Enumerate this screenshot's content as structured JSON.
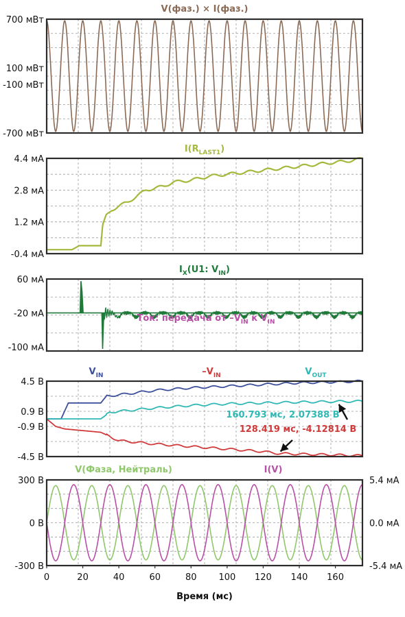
{
  "chart_data": [
    {
      "type": "line",
      "title": "V(фаз.) × I(фаз.)",
      "title_color": "#8a6a55",
      "series": [
        {
          "name": "V(фаз.) × I(фаз.)",
          "color": "#8a6a55",
          "amplitude": 680,
          "offset": 0,
          "frequency_hz": 100
        }
      ],
      "ylim": [
        -700,
        700
      ],
      "yticks": [
        700,
        100,
        -100,
        -700
      ],
      "ytick_labels": [
        "700 мВт",
        "100 мВт",
        "-100 мВт",
        "-700 мВт"
      ],
      "xlim": [
        0,
        175
      ]
    },
    {
      "type": "line",
      "title": "I(R",
      "title_sub": "LAST1",
      "title_end": ")",
      "title_color": "#a6b83c",
      "series": [
        {
          "name": "I(RLAST1)",
          "color": "#a6b83c",
          "x": [
            0,
            10,
            14,
            18,
            24,
            30,
            31,
            33,
            36,
            40,
            45,
            50,
            55,
            60,
            65,
            70,
            80,
            90,
            100,
            110,
            120,
            130,
            140,
            150,
            160,
            170,
            175
          ],
          "y": [
            -0.2,
            -0.2,
            -0.2,
            0.0,
            0.0,
            0.0,
            1.0,
            1.5,
            1.8,
            2.0,
            2.2,
            2.5,
            2.8,
            2.9,
            3.0,
            3.2,
            3.3,
            3.5,
            3.6,
            3.7,
            3.8,
            3.9,
            4.0,
            4.1,
            4.2,
            4.3,
            4.4
          ]
        }
      ],
      "ylim": [
        -0.4,
        4.4
      ],
      "yticks": [
        4.4,
        2.8,
        1.2,
        -0.4
      ],
      "ytick_labels": [
        "4.4 мА",
        "2.8 мА",
        "1.2 мА",
        "-0.4 мА"
      ],
      "xlim": [
        0,
        175
      ]
    },
    {
      "type": "line",
      "title": "I",
      "title_sub": "X",
      "title_mid": "(U1: V",
      "title_sub2": "IN",
      "title_end": ")",
      "title_color": "#1f7a3a",
      "series": [
        {
          "name": "IX(U1: VIN)",
          "color": "#1f7a3a"
        }
      ],
      "ylim": [
        -110,
        60
      ],
      "yticks": [
        60,
        -20,
        -100
      ],
      "ytick_labels": [
        "60 мА",
        "-20 мА",
        "-100 мА"
      ],
      "xlim": [
        0,
        175
      ],
      "annotation": {
        "pre": "Ток: передача от –V",
        "sub1": "IN",
        "mid": " к V",
        "sub2": "IN",
        "color": "#b84fa6"
      }
    },
    {
      "type": "line",
      "xlim": [
        0,
        175
      ],
      "ylim": [
        -4.5,
        4.5
      ],
      "yticks": [
        4.5,
        0.9,
        -0.9,
        -4.5
      ],
      "ytick_labels": [
        "4.5 В",
        "0.9 В",
        "-0.9 В",
        "-4.5 В"
      ],
      "series": [
        {
          "name": "V",
          "sub": "IN",
          "color": "#3b4f9a",
          "x": [
            0,
            8,
            12,
            25,
            30,
            33,
            45,
            60,
            80,
            100,
            120,
            140,
            160,
            175
          ],
          "y": [
            0,
            0,
            1.9,
            1.9,
            1.9,
            2.7,
            3.0,
            3.4,
            3.7,
            3.9,
            4.1,
            4.3,
            4.4,
            4.5
          ]
        },
        {
          "name": "–V",
          "sub": "IN",
          "color": "#d03a3a",
          "x": [
            0,
            5,
            10,
            20,
            30,
            40,
            60,
            80,
            100,
            120,
            128.419,
            140,
            160,
            175
          ],
          "y": [
            0,
            -0.9,
            -1.2,
            -1.4,
            -1.6,
            -2.6,
            -3.0,
            -3.3,
            -3.6,
            -3.9,
            -4.12814,
            -4.2,
            -4.3,
            -4.4
          ]
        },
        {
          "name": "V",
          "sub": "OUT",
          "color": "#2fb8b4",
          "x": [
            0,
            10,
            20,
            30,
            35,
            45,
            60,
            80,
            100,
            120,
            140,
            160.793,
            175
          ],
          "y": [
            0,
            0,
            0,
            0,
            0.8,
            1.0,
            1.3,
            1.6,
            1.8,
            1.9,
            2.0,
            2.07388,
            2.1
          ]
        }
      ],
      "annotations": [
        {
          "text": "160.793 мс, 2.07388 В",
          "x": 160.793,
          "y": 2.07388,
          "color": "#2fb8b4"
        },
        {
          "text": "128.419 мс, -4.12814 В",
          "x": 128.419,
          "y": -4.12814,
          "color": "#d03a3a"
        }
      ]
    },
    {
      "type": "line",
      "xlim": [
        0,
        175
      ],
      "xticks": [
        0,
        20,
        40,
        60,
        80,
        100,
        120,
        140,
        160
      ],
      "xlabel": "Время (мс)",
      "ylim": [
        -300,
        300
      ],
      "yticks": [
        300,
        0,
        -300
      ],
      "ytick_labels": [
        "300 В",
        "0 В",
        "-300 В"
      ],
      "y2lim": [
        -5.4,
        5.4
      ],
      "y2ticks": [
        5.4,
        0.0,
        -5.4
      ],
      "y2tick_labels": [
        "5.4  мА",
        "0.0 мА",
        "-5.4 мА"
      ],
      "series": [
        {
          "name": "V(Фаза, Нейтраль)",
          "color": "#8ec86a",
          "amplitude": 260,
          "frequency_hz": 50,
          "phase_deg": 0
        },
        {
          "name": "I(V)",
          "color": "#b84fa6",
          "amplitude_ma": 4.8,
          "frequency_hz": 50,
          "phase_deg": 180
        }
      ]
    }
  ]
}
